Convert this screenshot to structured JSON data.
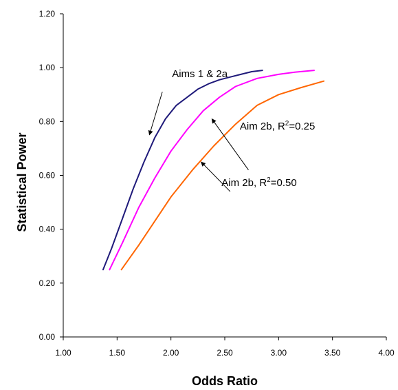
{
  "chart_data": {
    "type": "line",
    "title": "",
    "xlabel": "Odds Ratio",
    "ylabel": "Statistical Power",
    "xlim": [
      1.0,
      4.0
    ],
    "ylim": [
      0.0,
      1.2
    ],
    "xticks": [
      "1.00",
      "1.50",
      "2.00",
      "2.50",
      "3.00",
      "3.50",
      "4.00"
    ],
    "yticks": [
      "0.00",
      "0.20",
      "0.40",
      "0.60",
      "0.80",
      "1.00",
      "1.20"
    ],
    "grid": false,
    "legend": "none",
    "series": [
      {
        "name": "Aims 1 & 2a",
        "color": "#1f1a7a",
        "x": [
          1.37,
          1.45,
          1.55,
          1.65,
          1.75,
          1.85,
          1.95,
          2.05,
          2.15,
          2.25,
          2.35,
          2.45,
          2.55,
          2.65,
          2.75,
          2.85
        ],
        "y": [
          0.25,
          0.33,
          0.44,
          0.55,
          0.65,
          0.74,
          0.81,
          0.86,
          0.89,
          0.92,
          0.94,
          0.955,
          0.965,
          0.975,
          0.985,
          0.99
        ]
      },
      {
        "name": "Aim 2b, R2=0.25",
        "color": "#ff00ff",
        "x": [
          1.43,
          1.55,
          1.7,
          1.85,
          2.0,
          2.15,
          2.3,
          2.45,
          2.6,
          2.8,
          3.0,
          3.15,
          3.33
        ],
        "y": [
          0.25,
          0.35,
          0.48,
          0.59,
          0.69,
          0.77,
          0.84,
          0.89,
          0.93,
          0.96,
          0.975,
          0.983,
          0.99
        ]
      },
      {
        "name": "Aim 2b, R2=0.50",
        "color": "#ff6600",
        "x": [
          1.54,
          1.7,
          1.85,
          2.0,
          2.2,
          2.4,
          2.6,
          2.8,
          3.0,
          3.2,
          3.42
        ],
        "y": [
          0.25,
          0.34,
          0.43,
          0.52,
          0.62,
          0.71,
          0.79,
          0.86,
          0.9,
          0.925,
          0.95
        ]
      }
    ],
    "annotations": [
      {
        "text": "Aims 1 & 2a",
        "x": 2.01,
        "y": 0.965,
        "arrow_to": [
          1.8,
          0.75
        ],
        "arrow_from": [
          1.92,
          0.91
        ]
      },
      {
        "text_main": "Aim 2b, R",
        "text_sup": "2",
        "text_tail": "=0.25",
        "x": 2.64,
        "y": 0.77,
        "arrow_to": [
          2.38,
          0.81
        ],
        "arrow_from": [
          2.72,
          0.62
        ]
      },
      {
        "text_main": "Aim 2b, R",
        "text_sup": "2",
        "text_tail": "=0.50",
        "x": 2.47,
        "y": 0.56,
        "arrow_to": [
          2.28,
          0.65
        ],
        "arrow_from": [
          2.55,
          0.54
        ]
      }
    ]
  }
}
